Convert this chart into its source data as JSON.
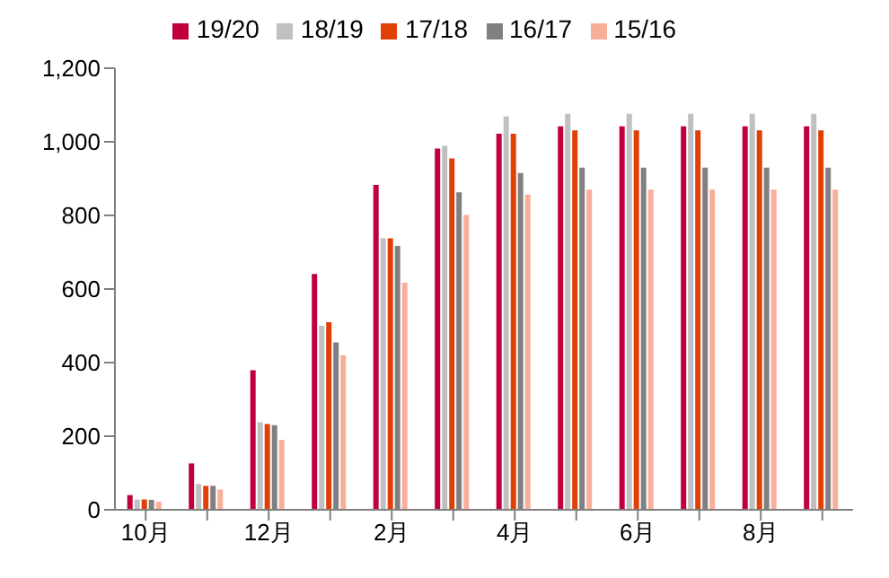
{
  "chart_data": {
    "type": "bar",
    "categories": [
      "10月",
      null,
      "12月",
      null,
      "2月",
      null,
      "4月",
      null,
      "6月",
      null,
      "8月",
      null
    ],
    "series": [
      {
        "name": "19/20",
        "color": "#c0003c",
        "values": [
          40,
          126,
          379,
          641,
          883,
          982,
          1022,
          1042,
          1042,
          1042,
          1042,
          1042
        ]
      },
      {
        "name": "18/19",
        "color": "#c0c0c0",
        "values": [
          28,
          70,
          238,
          500,
          738,
          989,
          1069,
          1076,
          1076,
          1076,
          1076,
          1076
        ]
      },
      {
        "name": "17/18",
        "color": "#e04006",
        "values": [
          28,
          65,
          233,
          510,
          738,
          955,
          1022,
          1031,
          1031,
          1031,
          1031,
          1031
        ]
      },
      {
        "name": "16/17",
        "color": "#808080",
        "values": [
          27,
          65,
          230,
          455,
          717,
          863,
          915,
          930,
          930,
          930,
          930,
          930
        ]
      },
      {
        "name": "15/16",
        "color": "#f9ae9a",
        "values": [
          22,
          55,
          190,
          420,
          617,
          801,
          857,
          870,
          870,
          870,
          870,
          870
        ]
      }
    ],
    "ylim": [
      0,
      1200
    ],
    "yticks": [
      0,
      200,
      400,
      600,
      800,
      {
        "value": 1000,
        "label": "1,000"
      },
      {
        "value": 1200,
        "label": "1,200"
      }
    ],
    "grid": false,
    "legend": "top"
  }
}
